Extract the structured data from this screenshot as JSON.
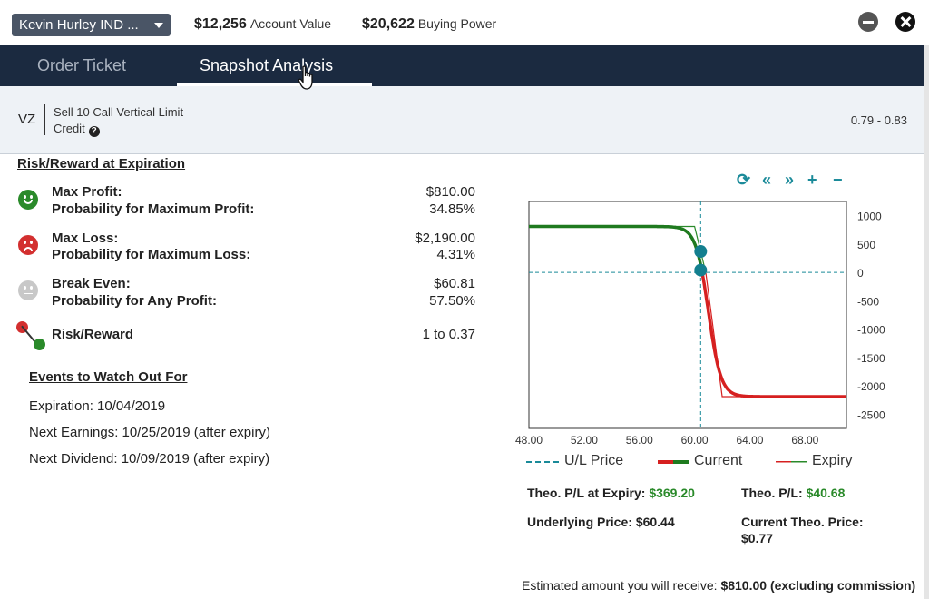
{
  "header": {
    "account_label": "Kevin Hurley IND ...",
    "account_value": "$12,256",
    "account_value_label": "Account Value",
    "buying_power": "$20,622",
    "buying_power_label": "Buying Power"
  },
  "tabs": [
    {
      "label": "Order Ticket",
      "active": false
    },
    {
      "label": "Snapshot Analysis",
      "active": true
    }
  ],
  "order": {
    "symbol": "VZ",
    "description_line1": "Sell 10 Call Vertical Limit",
    "description_line2": "Credit",
    "price_range": "0.79 - 0.83"
  },
  "risk": {
    "title": "Risk/Reward at Expiration",
    "max_profit_label": "Max Profit:",
    "max_profit_value": "$810.00",
    "prob_max_profit_label": "Probability for Maximum Profit:",
    "prob_max_profit_value": "34.85%",
    "max_loss_label": "Max Loss:",
    "max_loss_value": "$2,190.00",
    "prob_max_loss_label": "Probability for Maximum Loss:",
    "prob_max_loss_value": "4.31%",
    "break_even_label": "Break Even:",
    "break_even_value": "$60.81",
    "prob_any_profit_label": "Probability for Any Profit:",
    "prob_any_profit_value": "57.50%",
    "risk_reward_label": "Risk/Reward",
    "risk_reward_value": "1 to 0.37"
  },
  "events": {
    "title": "Events to Watch Out For",
    "items": [
      "Expiration: 10/04/2019",
      "Next Earnings: 10/25/2019 (after expiry)",
      "Next Dividend: 10/09/2019 (after expiry)"
    ]
  },
  "chart_tools": {
    "refresh": "⟳",
    "zoom_out": "«",
    "zoom_in": "»",
    "plus": "+",
    "minus": "−"
  },
  "chart_data": {
    "type": "line",
    "x_ticks": [
      "48.00",
      "52.00",
      "56.00",
      "60.00",
      "64.00",
      "68.00"
    ],
    "y_ticks": [
      "1000",
      "500",
      "0",
      "-500",
      "-1000",
      "-1500",
      "-2000",
      "-2500"
    ],
    "xlim": [
      48,
      71
    ],
    "ylim": [
      -2750,
      1250
    ],
    "underlying_price": 60.44,
    "strikes": [
      60,
      62
    ],
    "max_profit": 810,
    "max_loss": -2190,
    "current_points": [
      [
        60.44,
        369.2
      ],
      [
        60.44,
        40.68
      ]
    ],
    "legend": [
      "U/L Price",
      "Current",
      "Expiry"
    ],
    "colors": {
      "current": "#1f7a1f",
      "current_loss": "#d62020",
      "expiry_profit": "#2a8a2a",
      "expiry_loss": "#d62020",
      "ul_price": "#1a8a99",
      "marker": "#137f8f"
    }
  },
  "stats": {
    "theo_pl_expiry_label": "Theo. P/L at Expiry:",
    "theo_pl_expiry_value": "$369.20",
    "theo_pl_label": "Theo. P/L:",
    "theo_pl_value": "$40.68",
    "underlying_price_label": "Underlying Price:",
    "underlying_price_value": "$60.44",
    "current_theo_price_label": "Current Theo. Price:",
    "current_theo_price_value": "$0.77"
  },
  "footer": {
    "estimate_label": "Estimated amount you will receive:",
    "estimate_value": "$810.00",
    "estimate_note": "(excluding commission)"
  }
}
